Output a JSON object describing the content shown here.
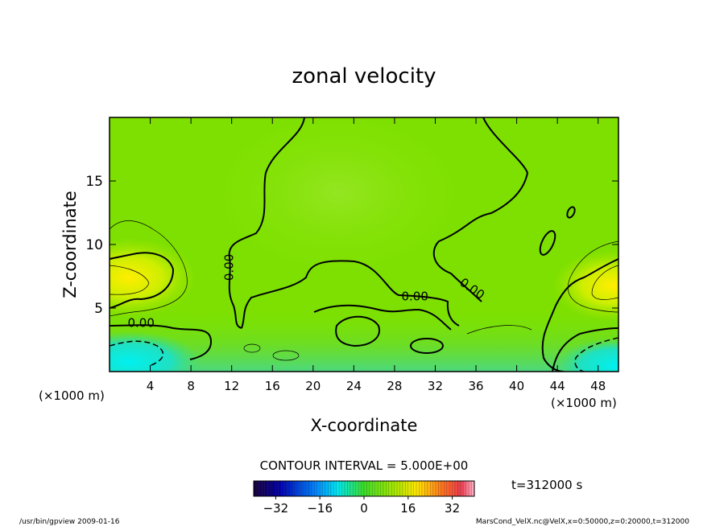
{
  "chart_data": {
    "type": "heatmap",
    "title": "zonal velocity",
    "xlabel": "X-coordinate",
    "ylabel": "Z-coordinate",
    "x_unit_left": "(×1000 m)",
    "x_unit_right": "(×1000 m)",
    "xlim": [
      0,
      50
    ],
    "ylim": [
      0,
      20
    ],
    "x_ticks": [
      "4",
      "8",
      "12",
      "16",
      "20",
      "24",
      "28",
      "32",
      "36",
      "40",
      "44",
      "48"
    ],
    "x_tick_values": [
      4,
      8,
      12,
      16,
      20,
      24,
      28,
      32,
      36,
      40,
      44,
      48
    ],
    "y_ticks": [
      "5",
      "10",
      "15"
    ],
    "y_tick_values": [
      5,
      10,
      15
    ],
    "contour_labels": [
      {
        "text": "0.00",
        "x": 11.8,
        "z": 8.2,
        "rotate": -90
      },
      {
        "text": "0.00",
        "x": 30.0,
        "z": 5.9,
        "rotate": 0
      },
      {
        "text": "0.00",
        "x": 35.6,
        "z": 6.5,
        "rotate": 35
      },
      {
        "text": "0.00",
        "x": 3.1,
        "z": 3.8,
        "rotate": 0
      }
    ],
    "contour_interval_text": "CONTOUR INTERVAL = 5.000E+00",
    "time_text": "t=312000 s",
    "colorbar": {
      "min": -40,
      "max": 40,
      "tick_labels": [
        "−32",
        "−16",
        "0",
        "16",
        "32"
      ],
      "tick_values": [
        -32,
        -16,
        0,
        16,
        32
      ]
    },
    "footer_left": "/usr/bin/gpview   2009-01-16",
    "footer_right": "MarsCond_VelX.nc@VelX,x=0:50000,z=0:20000,t=312000"
  }
}
